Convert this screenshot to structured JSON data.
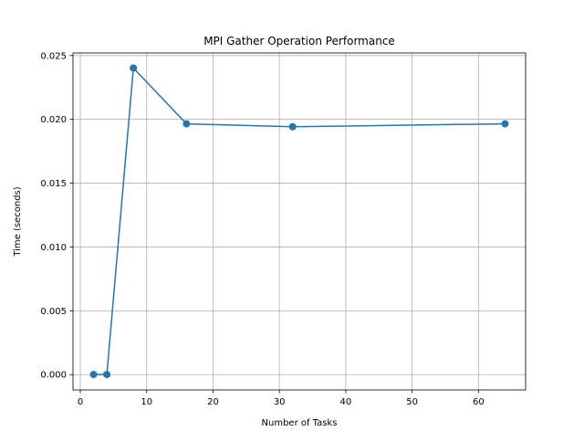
{
  "chart_data": {
    "type": "line",
    "title": "MPI Gather Operation Performance",
    "xlabel": "Number of Tasks",
    "ylabel": "Time (seconds)",
    "xlim": [
      -1.1,
      67.1
    ],
    "ylim": [
      -0.0012,
      0.0252
    ],
    "xticks": [
      0,
      10,
      20,
      30,
      40,
      50,
      60
    ],
    "xtick_labels": [
      "0",
      "10",
      "20",
      "30",
      "40",
      "50",
      "60"
    ],
    "yticks": [
      0,
      0.005,
      0.01,
      0.015,
      0.02,
      0.025
    ],
    "ytick_labels": [
      "0.000",
      "0.005",
      "0.010",
      "0.015",
      "0.020",
      "0.025"
    ],
    "grid": true,
    "color": "#1f77b4",
    "series": [
      {
        "x": [
          2,
          4,
          8,
          16,
          32,
          64
        ],
        "y": [
          1e-05,
          1e-05,
          0.02402,
          0.01965,
          0.01942,
          0.01965
        ]
      }
    ]
  }
}
